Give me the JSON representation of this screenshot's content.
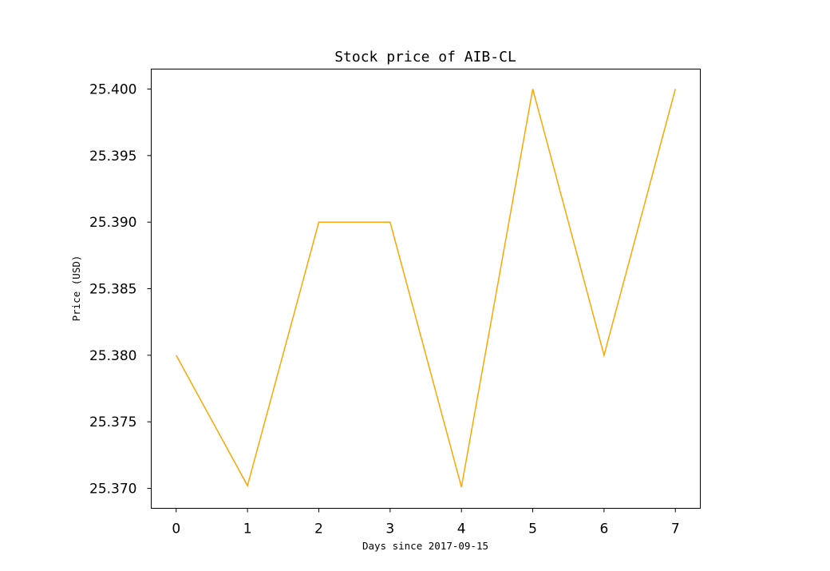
{
  "chart_data": {
    "type": "line",
    "title": "Stock price of AIB-CL",
    "xlabel": "Days since 2017-09-15",
    "ylabel": "Price (USD)",
    "x": [
      0,
      1,
      2,
      3,
      4,
      5,
      6,
      7
    ],
    "x_ticks": [
      "0",
      "1",
      "2",
      "3",
      "4",
      "5",
      "6",
      "7"
    ],
    "xlim": [
      -0.35,
      7.35
    ],
    "y_ticks": [
      "25.370",
      "25.375",
      "25.380",
      "25.385",
      "25.390",
      "25.395",
      "25.400"
    ],
    "ylim": [
      25.3685,
      25.4015
    ],
    "grid": false,
    "series": [
      {
        "color": "#FFA500",
        "values": [
          25.38,
          25.3702,
          25.39,
          25.39,
          25.3701,
          25.4,
          25.38,
          25.4
        ]
      }
    ]
  }
}
